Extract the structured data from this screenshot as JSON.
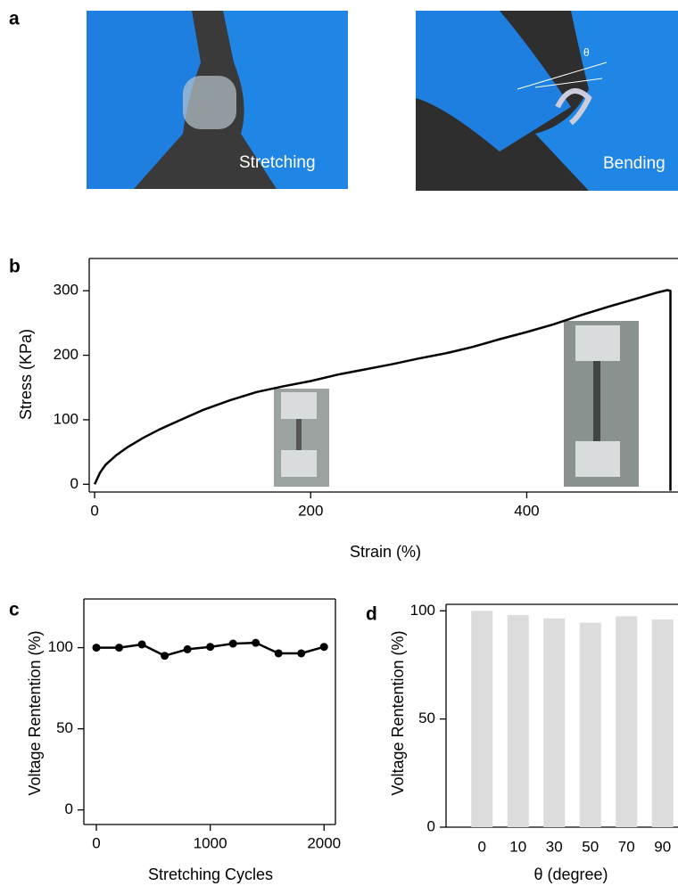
{
  "photos": {
    "panel_label": "a",
    "items": [
      {
        "caption": "Stretching"
      },
      {
        "caption": "Bending",
        "angle_label": "θ"
      }
    ]
  },
  "chart_data": [
    {
      "type": "line",
      "panel_label": "b",
      "xlabel": "Strain (%)",
      "ylabel": "Stress (KPa)",
      "x": [
        0,
        5,
        10,
        20,
        30,
        45,
        60,
        80,
        100,
        125,
        150,
        175,
        200,
        225,
        250,
        275,
        300,
        325,
        350,
        375,
        400,
        425,
        450,
        475,
        500,
        520,
        530,
        533,
        533
      ],
      "values": [
        0,
        18,
        30,
        45,
        57,
        72,
        85,
        100,
        115,
        130,
        143,
        152,
        160,
        170,
        178,
        186,
        195,
        203,
        213,
        225,
        236,
        248,
        262,
        275,
        287,
        297,
        301,
        300,
        -10
      ],
      "color": "#000000",
      "xlim": [
        -5,
        540
      ],
      "ylim": [
        -12,
        350
      ],
      "xticks": [
        0,
        200,
        400
      ],
      "yticks": [
        0,
        100,
        200,
        300
      ]
    },
    {
      "type": "line",
      "panel_label": "c",
      "xlabel": "Stretching Cycles",
      "ylabel": "Voltage Rentention (%)",
      "x": [
        0,
        200,
        400,
        600,
        800,
        1000,
        1200,
        1400,
        1600,
        1800,
        2000
      ],
      "values": [
        100,
        100,
        102,
        95,
        99,
        100.5,
        102.5,
        103,
        96.5,
        96.5,
        100.5
      ],
      "color": "#000000",
      "markers": true,
      "xlim": [
        -110,
        2100
      ],
      "ylim": [
        -9,
        130
      ],
      "xticks": [
        0,
        1000,
        2000
      ],
      "yticks": [
        0,
        50,
        100
      ]
    },
    {
      "type": "bar",
      "panel_label": "d",
      "xlabel": "θ (degree)",
      "ylabel": "Voltage Rentention (%)",
      "categories": [
        "0",
        "10",
        "30",
        "50",
        "70",
        "90"
      ],
      "values": [
        100,
        98,
        96.5,
        94.5,
        97.5,
        96
      ],
      "color": "#dcdcdc",
      "ylim": [
        0,
        103
      ],
      "yticks": [
        0,
        50,
        100
      ]
    }
  ]
}
